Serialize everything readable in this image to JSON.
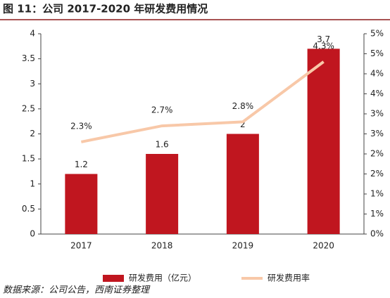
{
  "title": "图 11：公司 2017-2020 年研发费用情况",
  "source": "数据来源：公司公告，西南证券整理",
  "chart_data": {
    "type": "bar-line",
    "categories": [
      "2017",
      "2018",
      "2019",
      "2020"
    ],
    "series": [
      {
        "name": "研发费用（亿元）",
        "type": "bar",
        "color": "#c0161f",
        "values": [
          1.2,
          1.6,
          2,
          3.7
        ]
      },
      {
        "name": "研发费用率",
        "type": "line",
        "axis": "y2",
        "color": "#f8c8a8",
        "values": [
          2.3,
          2.7,
          2.8,
          4.3
        ],
        "value_labels": [
          "2.3%",
          "2.7%",
          "2.8%",
          "4.3%"
        ]
      }
    ],
    "ylim": [
      0,
      4
    ],
    "yticks": [
      0,
      0.5,
      1,
      1.5,
      2,
      2.5,
      3,
      3.5,
      4
    ],
    "y2lim": [
      0,
      5
    ],
    "y2ticks": [
      {
        "value": 0,
        "label": "0%"
      },
      {
        "value": 0.5,
        "label": "1%"
      },
      {
        "value": 1,
        "label": "1%"
      },
      {
        "value": 1.5,
        "label": "2%"
      },
      {
        "value": 2,
        "label": "2%"
      },
      {
        "value": 2.5,
        "label": "3%"
      },
      {
        "value": 3,
        "label": "3%"
      },
      {
        "value": 3.5,
        "label": "4%"
      },
      {
        "value": 4,
        "label": "4%"
      },
      {
        "value": 4.5,
        "label": "5%"
      },
      {
        "value": 5,
        "label": "5%"
      }
    ],
    "legend": "bottom"
  }
}
